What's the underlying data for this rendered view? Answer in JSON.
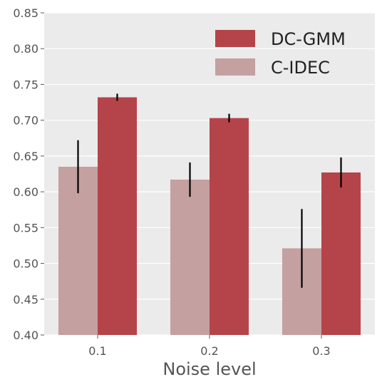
{
  "chart_data": {
    "type": "bar",
    "categories": [
      "0.1",
      "0.2",
      "0.3"
    ],
    "series": [
      {
        "name": "C-IDEC",
        "values": [
          0.635,
          0.617,
          0.521
        ],
        "errors": [
          0.037,
          0.024,
          0.055
        ],
        "color": "#c4a0a0"
      },
      {
        "name": "DC-GMM",
        "values": [
          0.732,
          0.703,
          0.627
        ],
        "errors": [
          0.005,
          0.006,
          0.021
        ],
        "color": "#b5444a"
      }
    ],
    "title": "",
    "xlabel": "Noise level",
    "ylabel": "",
    "ylim": [
      0.4,
      0.85
    ],
    "yticks": [
      "0.40",
      "0.45",
      "0.50",
      "0.55",
      "0.60",
      "0.65",
      "0.70",
      "0.75",
      "0.80",
      "0.85"
    ],
    "grid": true,
    "legend": "top-right",
    "legend_order": [
      "DC-GMM",
      "C-IDEC"
    ],
    "background": "#ebebeb",
    "gridline_color": "#ffffff",
    "error_bar_color": "#000000"
  }
}
